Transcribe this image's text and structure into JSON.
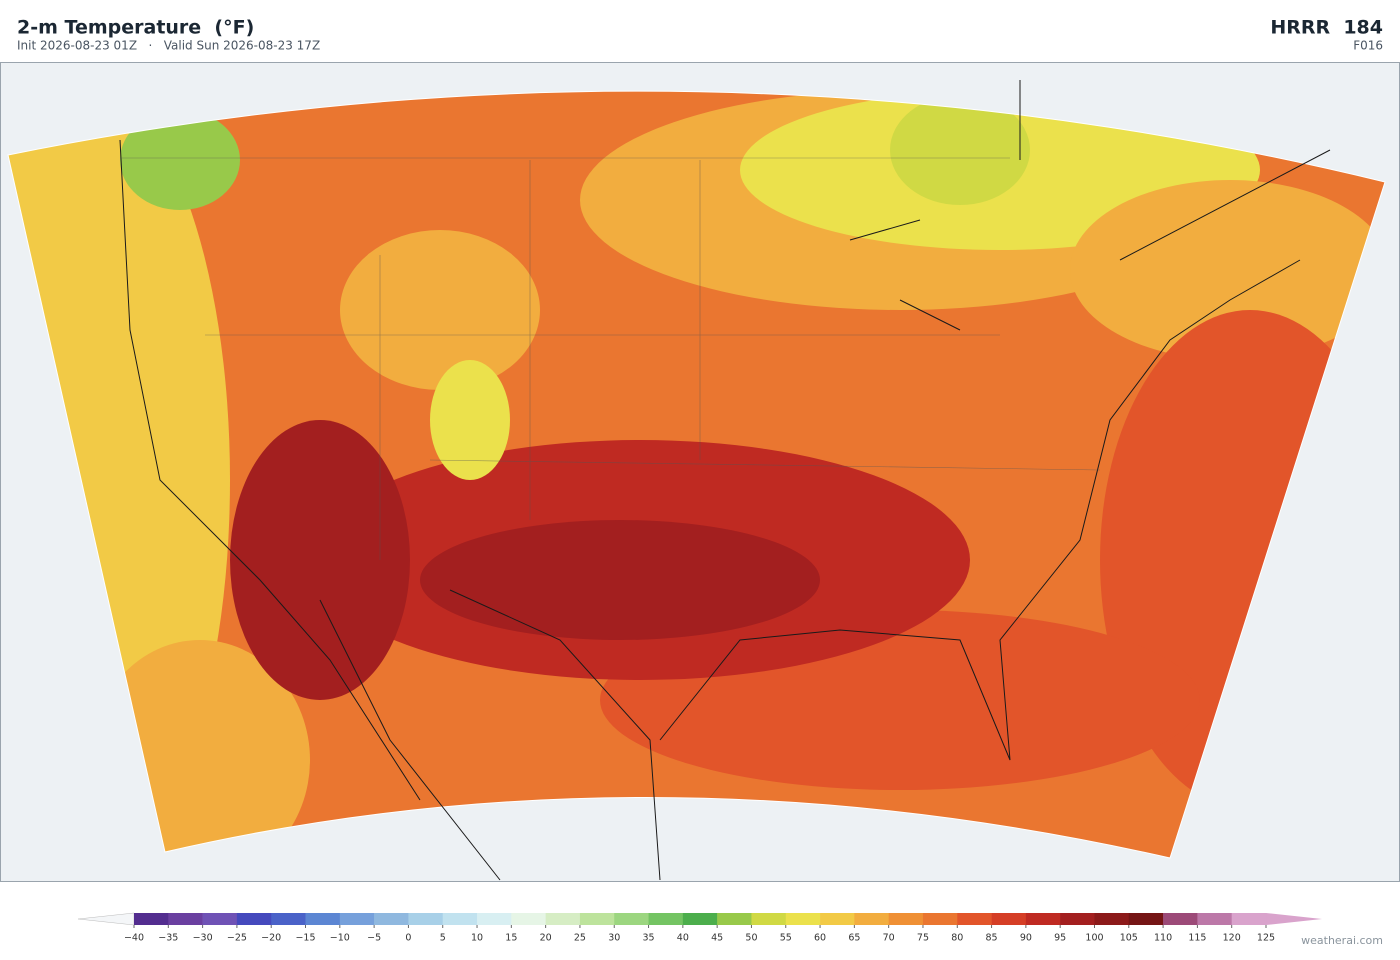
{
  "header": {
    "title": "2-m Temperature  (°F)",
    "subtitle": "Init 2026-08-23 01Z   ·   Valid Sun 2026-08-23 17Z",
    "model": "HRRR  184",
    "forecast_hour": "F016"
  },
  "colorbar": {
    "ticks": [
      {
        "value": -40,
        "label": "−40"
      },
      {
        "value": -35,
        "label": "−35"
      },
      {
        "value": -30,
        "label": "−30"
      },
      {
        "value": -25,
        "label": "−25"
      },
      {
        "value": -20,
        "label": "−20"
      },
      {
        "value": -15,
        "label": "−15"
      },
      {
        "value": -10,
        "label": "−10"
      },
      {
        "value": -5,
        "label": "−5"
      },
      0,
      5,
      10,
      15,
      20,
      25,
      30,
      35,
      40,
      45,
      50,
      55,
      60,
      65,
      70,
      75,
      80,
      85,
      90,
      95,
      100,
      105,
      110,
      115,
      120,
      125
    ],
    "colors": [
      "#532d8f",
      "#6a3fa0",
      "#6f52b5",
      "#4549bd",
      "#4a62c8",
      "#5c86d3",
      "#76a0db",
      "#8fb8df",
      "#a8d0e8",
      "#c1e2ef",
      "#d8eff2",
      "#e6f5e6",
      "#d6edc4",
      "#bde39c",
      "#9cd680",
      "#74c463",
      "#4cae4c",
      "#98c94a",
      "#d0d944",
      "#ebe14c",
      "#f2ca46",
      "#f2ad3f",
      "#ef9035",
      "#ea7630",
      "#e2552a",
      "#d53e26",
      "#bf2a22",
      "#a31f1f",
      "#8c1a1a",
      "#751515",
      "#9c4a78",
      "#bc78a8",
      "#d9a3cc"
    ],
    "under_color": "#f4f6f8",
    "over_color": "#d9a3cc"
  },
  "credit": "weatherai.com"
}
